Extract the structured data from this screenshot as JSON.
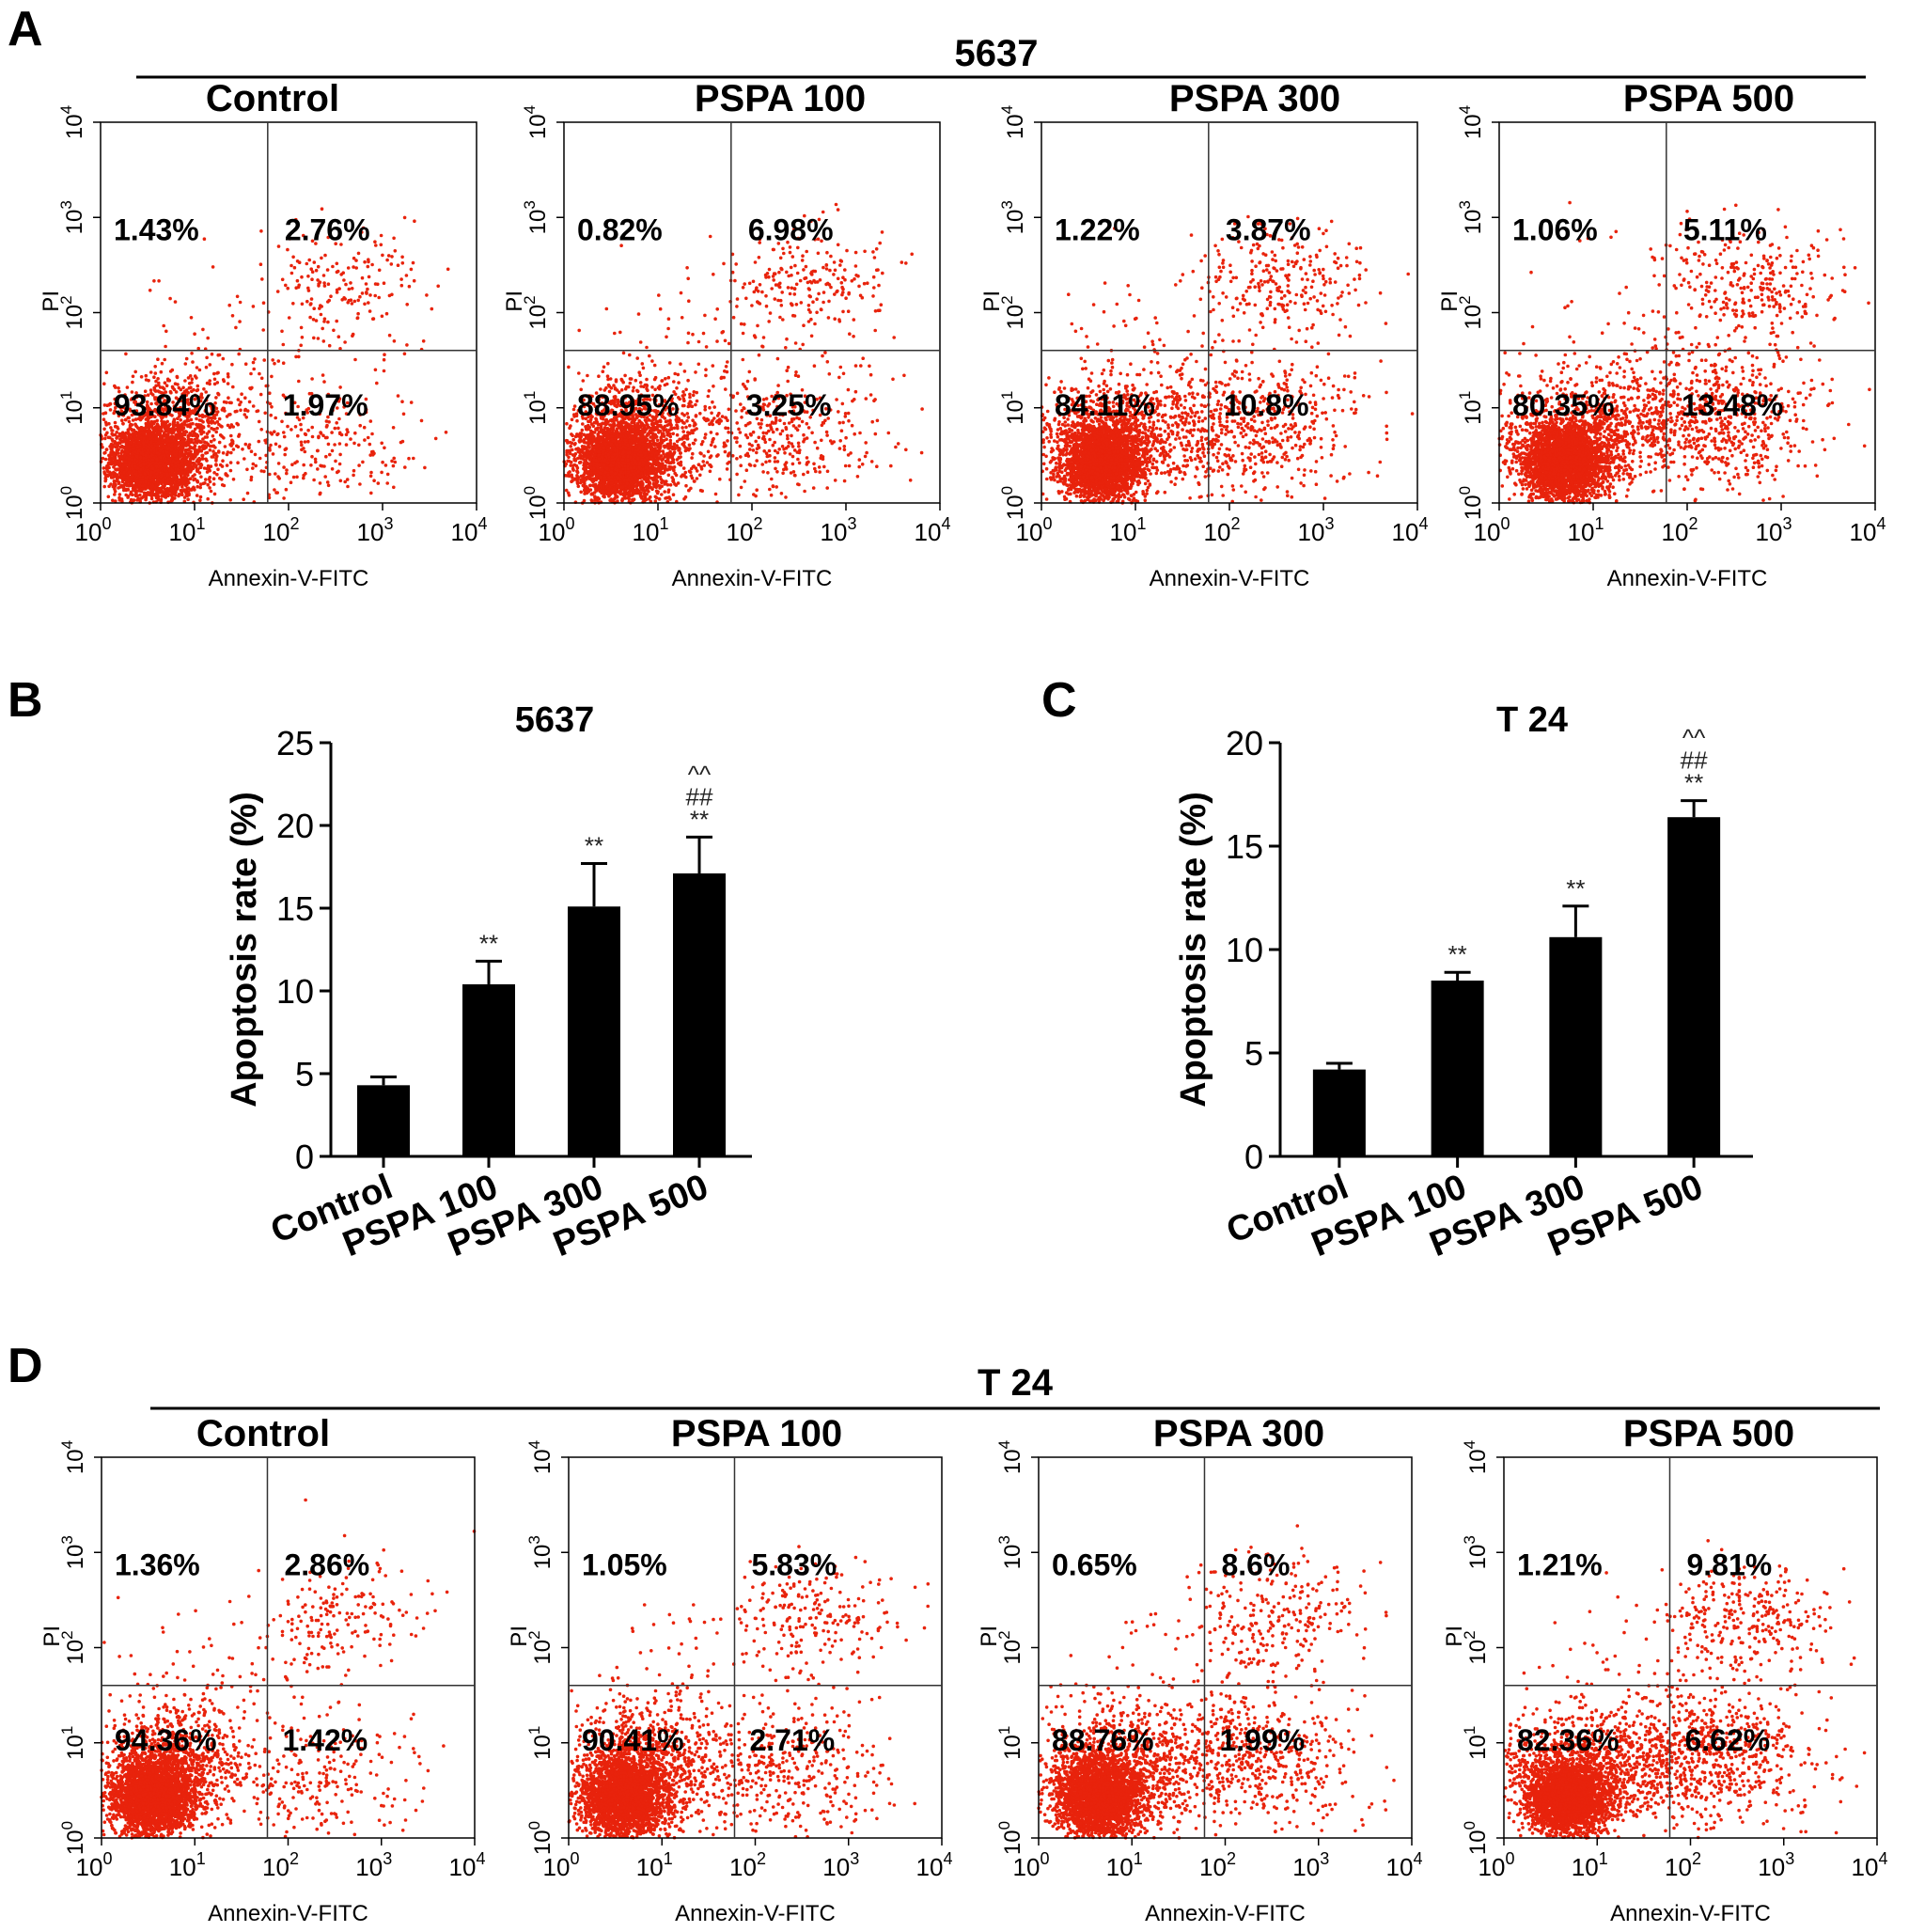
{
  "panel_letters": {
    "a": "A",
    "b": "B",
    "c": "C",
    "d": "D"
  },
  "colors": {
    "dots": "#e8230c",
    "bars": "#000000",
    "axes": "#000000"
  },
  "flow_axis_labels": {
    "x": "Annexin-V-FITC",
    "y": "PI"
  },
  "flow_ticks": [
    "0",
    "1",
    "2",
    "3",
    "4"
  ],
  "flow_tick_base": "10",
  "chart_data": [
    {
      "type": "scatter",
      "panel": "A",
      "cell_line": "5637",
      "xlabel": "Annexin-V-FITC",
      "ylabel": "PI",
      "x_scale": "log",
      "y_scale": "log",
      "xlim": [
        1,
        10000
      ],
      "ylim": [
        1,
        10000
      ],
      "plots": [
        {
          "title": "Control",
          "upper_left": "1.43%",
          "upper_right": "2.76%",
          "lower_left": "93.84%",
          "lower_right": "1.97%"
        },
        {
          "title": "PSPA 100",
          "upper_left": "0.82%",
          "upper_right": "6.98%",
          "lower_left": "88.95%",
          "lower_right": "3.25%"
        },
        {
          "title": "PSPA 300",
          "upper_left": "1.22%",
          "upper_right": "3.87%",
          "lower_left": "84.11%",
          "lower_right": "10.8%"
        },
        {
          "title": "PSPA 500",
          "upper_left": "1.06%",
          "upper_right": "5.11%",
          "lower_left": "80.35%",
          "lower_right": "13.48%"
        }
      ]
    },
    {
      "type": "bar",
      "panel": "B",
      "title": "5637",
      "ylabel": "Apoptosis rate (%)",
      "categories": [
        "Control",
        "PSPA 100",
        "PSPA 300",
        "PSPA 500"
      ],
      "values": [
        4.3,
        10.4,
        15.1,
        17.1
      ],
      "errors": [
        0.5,
        1.4,
        2.6,
        2.2
      ],
      "annotations": [
        [],
        [
          "**"
        ],
        [
          "**"
        ],
        [
          "**",
          "##",
          "^^"
        ]
      ],
      "ylim": [
        0,
        25
      ],
      "yticks": [
        0,
        5,
        10,
        15,
        20,
        25
      ]
    },
    {
      "type": "bar",
      "panel": "C",
      "title": "T 24",
      "ylabel": "Apoptosis rate (%)",
      "categories": [
        "Control",
        "PSPA 100",
        "PSPA 300",
        "PSPA 500"
      ],
      "values": [
        4.2,
        8.5,
        10.6,
        16.4
      ],
      "errors": [
        0.3,
        0.4,
        1.5,
        0.8
      ],
      "annotations": [
        [],
        [
          "**"
        ],
        [
          "**"
        ],
        [
          "**",
          "##",
          "^^"
        ]
      ],
      "ylim": [
        0,
        20
      ],
      "yticks": [
        0,
        5,
        10,
        15,
        20
      ]
    },
    {
      "type": "scatter",
      "panel": "D",
      "cell_line": "T 24",
      "xlabel": "Annexin-V-FITC",
      "ylabel": "PI",
      "x_scale": "log",
      "y_scale": "log",
      "xlim": [
        1,
        10000
      ],
      "ylim": [
        1,
        10000
      ],
      "plots": [
        {
          "title": "Control",
          "upper_left": "1.36%",
          "upper_right": "2.86%",
          "lower_left": "94.36%",
          "lower_right": "1.42%"
        },
        {
          "title": "PSPA 100",
          "upper_left": "1.05%",
          "upper_right": "5.83%",
          "lower_left": "90.41%",
          "lower_right": "2.71%"
        },
        {
          "title": "PSPA 300",
          "upper_left": "0.65%",
          "upper_right": "8.6%",
          "lower_left": "88.76%",
          "lower_right": "1.99%"
        },
        {
          "title": "PSPA 500",
          "upper_left": "1.21%",
          "upper_right": "9.81%",
          "lower_left": "82.36%",
          "lower_right": "6.62%"
        }
      ]
    }
  ]
}
